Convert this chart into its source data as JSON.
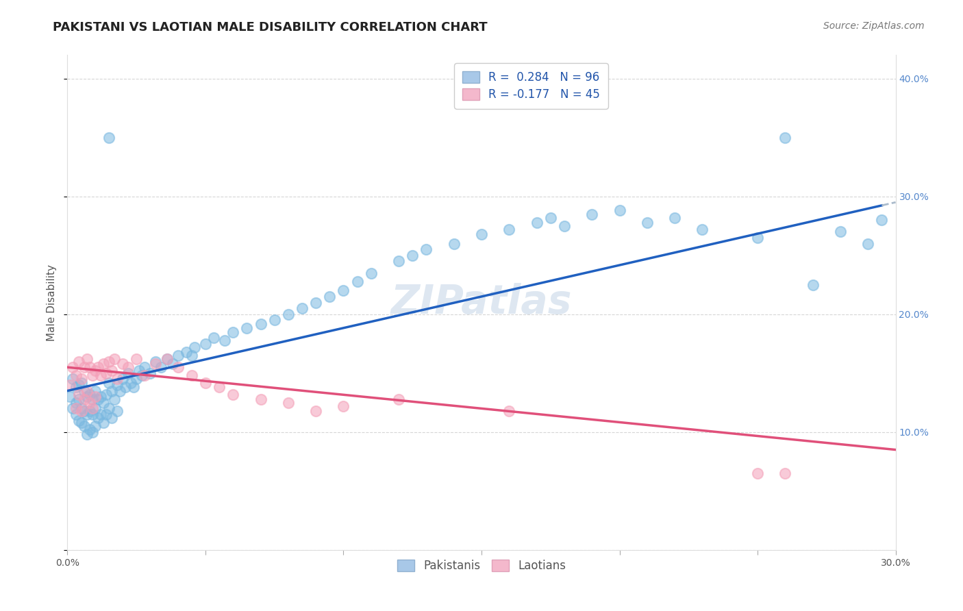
{
  "title": "PAKISTANI VS LAOTIAN MALE DISABILITY CORRELATION CHART",
  "source": "Source: ZipAtlas.com",
  "ylabel": "Male Disability",
  "watermark": "ZIPatlas",
  "x_min": 0.0,
  "x_max": 0.3,
  "y_min": 0.0,
  "y_max": 0.42,
  "pakistani_color": "#7ab8e0",
  "laotian_color": "#f4a0b8",
  "trend_pakistani_color": "#2060c0",
  "trend_laotian_color": "#e0507a",
  "trend_extension_color": "#aabbcc",
  "background_color": "#ffffff",
  "grid_color": "#cccccc",
  "title_fontsize": 13,
  "source_fontsize": 10,
  "axis_label_fontsize": 11,
  "tick_fontsize": 10,
  "legend_fontsize": 12,
  "watermark_fontsize": 42,
  "watermark_color": "#c8d8e8",
  "watermark_alpha": 0.6,
  "pk_trend_x0": 0.0,
  "pk_trend_y0": 0.135,
  "pk_trend_x1": 0.3,
  "pk_trend_y1": 0.295,
  "la_trend_x0": 0.0,
  "la_trend_y0": 0.155,
  "la_trend_x1": 0.3,
  "la_trend_y1": 0.085,
  "pk_trend_solid_end": 0.295,
  "pakistani_x": [
    0.001,
    0.002,
    0.002,
    0.003,
    0.003,
    0.003,
    0.004,
    0.004,
    0.004,
    0.005,
    0.005,
    0.005,
    0.006,
    0.006,
    0.006,
    0.007,
    0.007,
    0.007,
    0.008,
    0.008,
    0.008,
    0.009,
    0.009,
    0.009,
    0.01,
    0.01,
    0.01,
    0.011,
    0.011,
    0.012,
    0.012,
    0.013,
    0.013,
    0.014,
    0.014,
    0.015,
    0.015,
    0.016,
    0.016,
    0.017,
    0.018,
    0.018,
    0.019,
    0.02,
    0.021,
    0.022,
    0.023,
    0.024,
    0.025,
    0.026,
    0.027,
    0.028,
    0.03,
    0.032,
    0.034,
    0.036,
    0.038,
    0.04,
    0.043,
    0.046,
    0.05,
    0.053,
    0.057,
    0.06,
    0.065,
    0.07,
    0.075,
    0.08,
    0.085,
    0.09,
    0.095,
    0.1,
    0.105,
    0.11,
    0.12,
    0.125,
    0.13,
    0.14,
    0.15,
    0.16,
    0.17,
    0.175,
    0.18,
    0.19,
    0.2,
    0.21,
    0.22,
    0.23,
    0.25,
    0.26,
    0.27,
    0.28,
    0.29,
    0.295,
    0.015,
    0.045
  ],
  "pakistani_y": [
    0.13,
    0.145,
    0.12,
    0.138,
    0.125,
    0.115,
    0.14,
    0.128,
    0.11,
    0.142,
    0.12,
    0.108,
    0.135,
    0.118,
    0.105,
    0.13,
    0.115,
    0.098,
    0.132,
    0.118,
    0.102,
    0.128,
    0.115,
    0.1,
    0.135,
    0.12,
    0.105,
    0.128,
    0.112,
    0.13,
    0.115,
    0.125,
    0.108,
    0.132,
    0.115,
    0.142,
    0.12,
    0.135,
    0.112,
    0.128,
    0.14,
    0.118,
    0.135,
    0.145,
    0.138,
    0.15,
    0.142,
    0.138,
    0.145,
    0.152,
    0.148,
    0.155,
    0.15,
    0.16,
    0.155,
    0.162,
    0.158,
    0.165,
    0.168,
    0.172,
    0.175,
    0.18,
    0.178,
    0.185,
    0.188,
    0.192,
    0.195,
    0.2,
    0.205,
    0.21,
    0.215,
    0.22,
    0.228,
    0.235,
    0.245,
    0.25,
    0.255,
    0.26,
    0.268,
    0.272,
    0.278,
    0.282,
    0.275,
    0.285,
    0.288,
    0.278,
    0.282,
    0.272,
    0.265,
    0.35,
    0.225,
    0.27,
    0.26,
    0.28,
    0.35,
    0.165
  ],
  "laotian_x": [
    0.001,
    0.002,
    0.003,
    0.003,
    0.004,
    0.004,
    0.005,
    0.005,
    0.006,
    0.006,
    0.007,
    0.007,
    0.008,
    0.008,
    0.009,
    0.009,
    0.01,
    0.01,
    0.011,
    0.012,
    0.013,
    0.014,
    0.015,
    0.016,
    0.017,
    0.018,
    0.02,
    0.022,
    0.025,
    0.028,
    0.032,
    0.036,
    0.04,
    0.045,
    0.05,
    0.055,
    0.06,
    0.07,
    0.08,
    0.09,
    0.1,
    0.12,
    0.16,
    0.25,
    0.26
  ],
  "laotian_y": [
    0.14,
    0.155,
    0.148,
    0.12,
    0.16,
    0.132,
    0.145,
    0.118,
    0.155,
    0.128,
    0.162,
    0.135,
    0.155,
    0.125,
    0.148,
    0.12,
    0.152,
    0.13,
    0.155,
    0.148,
    0.158,
    0.15,
    0.16,
    0.152,
    0.162,
    0.145,
    0.158,
    0.155,
    0.162,
    0.148,
    0.158,
    0.162,
    0.155,
    0.148,
    0.142,
    0.138,
    0.132,
    0.128,
    0.125,
    0.118,
    0.122,
    0.128,
    0.118,
    0.065,
    0.065
  ]
}
